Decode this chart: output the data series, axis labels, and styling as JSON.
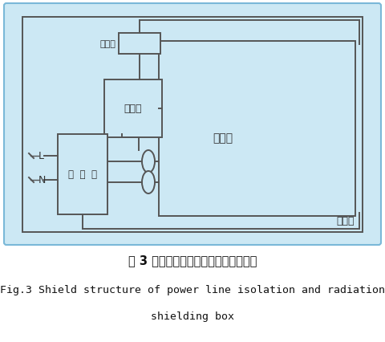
{
  "bg_color": "#cce8f4",
  "white": "#ffffff",
  "box_edge_color": "#555555",
  "line_color": "#555555",
  "blue_line": "#4a90c8",
  "text_color": "#333333",
  "title_cn": "图 3 屏蔽箱电力线隔离和辐射屏蔽结构",
  "title_en1": "Fig.3 Shield structure of power line isolation and radiation",
  "title_en2": "shielding box",
  "label_shepin": "射频口",
  "label_ouhe": "耦合器",
  "label_bianlv": "滤  波  器",
  "label_ceshi": "测试板",
  "label_pingbi": "屏蔽箱",
  "label_L": "L",
  "label_N": "N"
}
